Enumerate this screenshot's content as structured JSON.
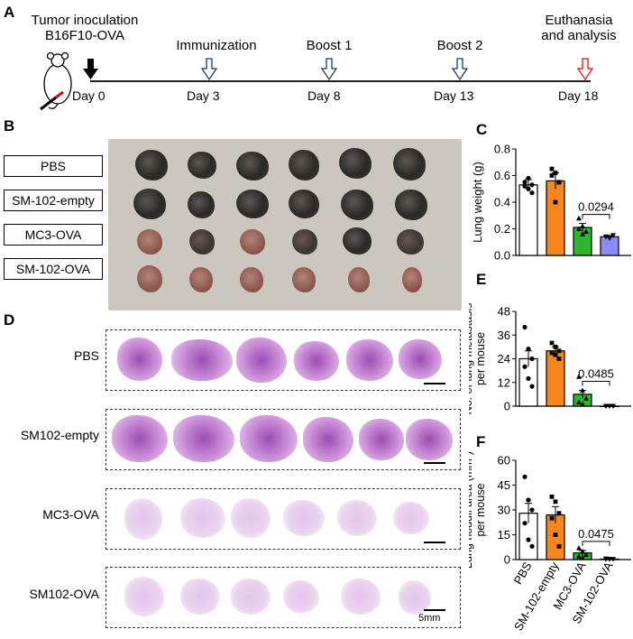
{
  "panels": {
    "A": "A",
    "B": "B",
    "C": "C",
    "D": "D",
    "E": "E",
    "F": "F"
  },
  "timeline": {
    "events": [
      {
        "label_line1": "Tumor inoculation",
        "label_line2": "B16F10-OVA",
        "day": "Day 0",
        "arrow": "solid-black"
      },
      {
        "label_line1": "Immunization",
        "label_line2": "",
        "day": "Day 3",
        "arrow": "outline-navy"
      },
      {
        "label_line1": "Boost 1",
        "label_line2": "",
        "day": "Day 8",
        "arrow": "outline-navy"
      },
      {
        "label_line1": "Boost 2",
        "label_line2": "",
        "day": "Day 13",
        "arrow": "outline-navy"
      },
      {
        "label_line1": "Euthanasia",
        "label_line2": "and analysis",
        "day": "Day 18",
        "arrow": "outline-red"
      }
    ]
  },
  "groups_B": [
    "PBS",
    "SM-102-empty",
    "MC3-OVA",
    "SM-102-OVA"
  ],
  "groups_D": [
    "PBS",
    "SM102-empty",
    "MC3-OVA",
    "SM102-OVA"
  ],
  "scale_label": "5mm",
  "colors": {
    "PBS": "#ffffff",
    "SM-102-empty": "#f7861e",
    "MC3-OVA": "#2db52d",
    "SM-102-OVA": "#8b8bff",
    "navy": "#1f3864",
    "red": "#e0312b"
  },
  "chart_data": [
    {
      "panel": "C",
      "type": "bar",
      "categories": [
        "PBS",
        "SM-102-empty",
        "MC3-OVA",
        "SM-102-OVA"
      ],
      "values": [
        0.53,
        0.56,
        0.21,
        0.14
      ],
      "errors": [
        0.04,
        0.06,
        0.03,
        0.01
      ],
      "points": [
        [
          0.52,
          0.58,
          0.47,
          0.55,
          0.5,
          0.53
        ],
        [
          0.65,
          0.62,
          0.55,
          0.6,
          0.4,
          0.55
        ],
        [
          0.28,
          0.22,
          0.18,
          0.2,
          0.16
        ],
        [
          0.14,
          0.13,
          0.15,
          0.14,
          0.13
        ]
      ],
      "ylabel": "Lung weight (g)",
      "ylim": [
        0.0,
        0.8
      ],
      "yticks": [
        "0.0",
        "0.2",
        "0.4",
        "0.6",
        "0.8"
      ],
      "annotation": {
        "text": "0.0294",
        "between": [
          "MC3-OVA",
          "SM-102-OVA"
        ]
      }
    },
    {
      "panel": "E",
      "type": "bar",
      "categories": [
        "PBS",
        "SM-102-empty",
        "MC3-OVA",
        "SM-102-OVA"
      ],
      "values": [
        24,
        28,
        6,
        0
      ],
      "errors": [
        4,
        2,
        2,
        0
      ],
      "points": [
        [
          40,
          29,
          24,
          20,
          14,
          10
        ],
        [
          32,
          30,
          28,
          27,
          26,
          24
        ],
        [
          15,
          8,
          4,
          2,
          1
        ],
        [
          0,
          0,
          0,
          0,
          0
        ]
      ],
      "ylabel": "No. of lung metastasis per mouse",
      "ylim": [
        0,
        48
      ],
      "yticks": [
        "0",
        "12",
        "24",
        "36",
        "48"
      ],
      "annotation": {
        "text": "0.0485",
        "between": [
          "MC3-OVA",
          "SM-102-OVA"
        ]
      }
    },
    {
      "panel": "F",
      "type": "bar",
      "categories": [
        "PBS",
        "SM-102-empty",
        "MC3-OVA",
        "SM-102-OVA"
      ],
      "values": [
        28,
        27,
        4,
        0.3
      ],
      "errors": [
        6,
        5,
        1.5,
        0.2
      ],
      "points": [
        [
          50,
          36,
          30,
          22,
          12,
          8
        ],
        [
          38,
          35,
          28,
          25,
          15,
          8
        ],
        [
          7,
          5,
          3,
          2,
          1
        ],
        [
          0.5,
          0.3,
          0.2,
          0.2,
          0.3
        ]
      ],
      "ylabel": "Lung noduli area (mm²) per mouse",
      "ylim": [
        0,
        60
      ],
      "yticks": [
        "0",
        "15",
        "30",
        "45",
        "60"
      ],
      "annotation": {
        "text": "0.0475",
        "between": [
          "MC3-OVA",
          "SM-102-OVA"
        ]
      },
      "xtick_labels": [
        "PBS",
        "SM-102-empty",
        "MC3-OVA",
        "SM-102-OVA"
      ]
    }
  ]
}
